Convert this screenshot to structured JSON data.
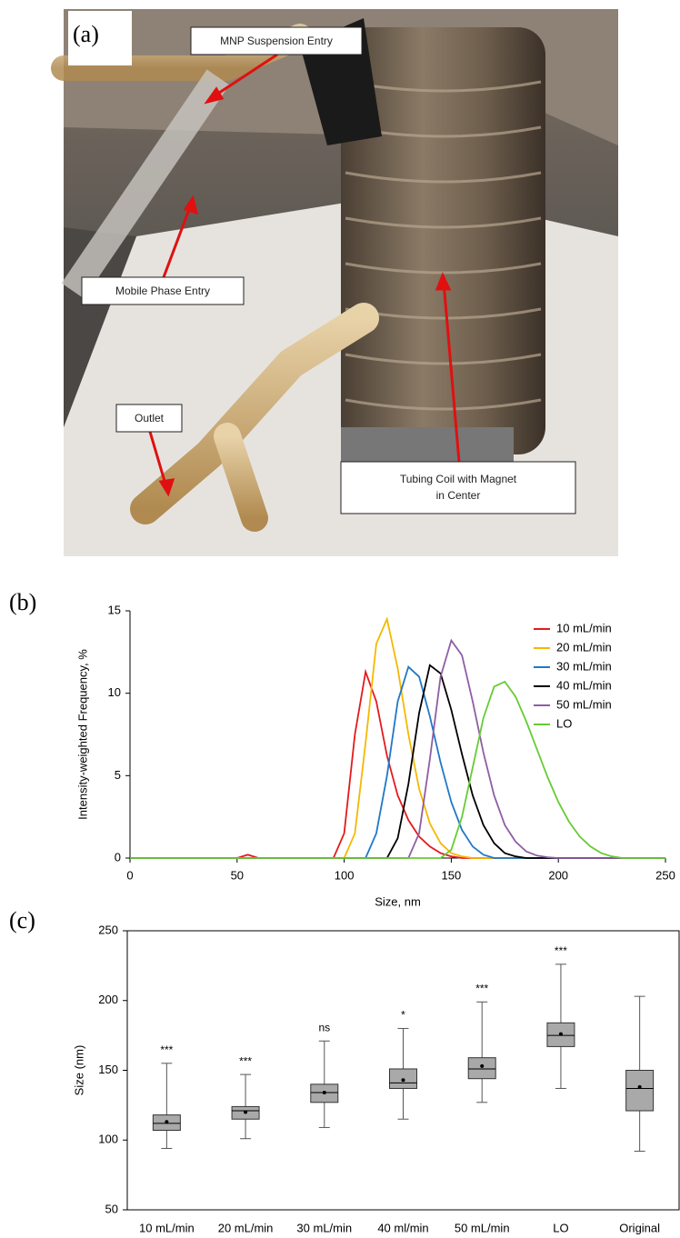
{
  "panel_a": {
    "panel_label": "(a)",
    "callouts": [
      "MNP Suspension Entry",
      "Mobile Phase Entry",
      "Outlet",
      "Tubing Coil with Magnet",
      "in Center"
    ]
  },
  "chart_data": [
    {
      "type": "line",
      "panel_label": "(b)",
      "x_label": "Size, nm",
      "y_label": "Intensity-weighted Frequency, %",
      "x": [
        0,
        50,
        55,
        60,
        90,
        95,
        100,
        105,
        110,
        115,
        120,
        125,
        130,
        135,
        140,
        145,
        150,
        155,
        160,
        165,
        170,
        175,
        180,
        185,
        190,
        195,
        200,
        205,
        210,
        215,
        220,
        225,
        230,
        250
      ],
      "xlim": [
        0,
        250
      ],
      "xticks": [
        0,
        50,
        100,
        150,
        200,
        250
      ],
      "ylim": [
        0,
        15
      ],
      "yticks": [
        0,
        5,
        10,
        15
      ],
      "legend": "upper right",
      "series": [
        {
          "name": "10 mL/min",
          "color": "#e41a1c",
          "values": [
            0,
            0,
            0.2,
            0,
            0,
            0,
            1.5,
            7.5,
            11.3,
            9.5,
            6.2,
            3.8,
            2.3,
            1.3,
            0.7,
            0.3,
            0.1,
            0,
            0,
            0,
            0,
            0,
            0,
            0,
            0,
            0,
            0,
            0,
            0,
            0,
            0,
            0,
            0,
            0
          ]
        },
        {
          "name": "20 mL/min",
          "color": "#f5b800",
          "values": [
            0,
            0,
            0,
            0,
            0,
            0,
            0,
            1.5,
            7,
            13,
            14.5,
            11.5,
            7.5,
            4.2,
            2.1,
            0.9,
            0.3,
            0.1,
            0,
            0,
            0,
            0,
            0,
            0,
            0,
            0,
            0,
            0,
            0,
            0,
            0,
            0,
            0,
            0
          ]
        },
        {
          "name": "30 mL/min",
          "color": "#1f78c8",
          "values": [
            0,
            0,
            0,
            0,
            0,
            0,
            0,
            0,
            0,
            1.5,
            5,
            9.5,
            11.6,
            11,
            8.6,
            5.8,
            3.4,
            1.7,
            0.7,
            0.2,
            0,
            0,
            0,
            0,
            0,
            0,
            0,
            0,
            0,
            0,
            0,
            0,
            0,
            0
          ]
        },
        {
          "name": "40 mL/min",
          "color": "#000000",
          "values": [
            0,
            0,
            0,
            0,
            0,
            0,
            0,
            0,
            0,
            0,
            0,
            1.2,
            4.5,
            8.8,
            11.7,
            11.2,
            9,
            6.3,
            3.8,
            2,
            0.9,
            0.3,
            0.1,
            0,
            0,
            0,
            0,
            0,
            0,
            0,
            0,
            0,
            0,
            0
          ]
        },
        {
          "name": "50 mL/min",
          "color": "#8e5ea2",
          "values": [
            0,
            0,
            0,
            0,
            0,
            0,
            0,
            0,
            0,
            0,
            0,
            0,
            0,
            1.5,
            6,
            11,
            13.2,
            12.3,
            9.5,
            6.4,
            3.8,
            2,
            1,
            0.4,
            0.15,
            0.05,
            0,
            0,
            0,
            0,
            0,
            0,
            0,
            0
          ]
        },
        {
          "name": "LO",
          "color": "#66cc33",
          "values": [
            0,
            0,
            0,
            0,
            0,
            0,
            0,
            0,
            0,
            0,
            0,
            0,
            0,
            0,
            0,
            0,
            0.5,
            2.5,
            5.5,
            8.5,
            10.4,
            10.7,
            9.8,
            8.3,
            6.6,
            4.9,
            3.4,
            2.2,
            1.3,
            0.7,
            0.3,
            0.1,
            0,
            0
          ]
        }
      ]
    },
    {
      "type": "box",
      "panel_label": "(c)",
      "y_label": "Size (nm)",
      "categories": [
        "10 mL/min",
        "20 mL/min",
        "30 mL/min",
        "40 ml/min",
        "50 mL/min",
        "LO",
        "Original"
      ],
      "ylim": [
        50,
        250
      ],
      "yticks": [
        50,
        100,
        150,
        200,
        250
      ],
      "color": "#a9a9a9",
      "min": [
        94,
        101,
        109,
        115,
        127,
        137,
        92
      ],
      "q1": [
        107,
        115,
        127,
        137,
        144,
        167,
        121
      ],
      "median": [
        112,
        121,
        134,
        141,
        151,
        175,
        137
      ],
      "q3": [
        118,
        124,
        140,
        151,
        159,
        184,
        150
      ],
      "max": [
        155,
        147,
        171,
        180,
        199,
        226,
        203
      ],
      "mean": [
        113,
        120,
        134,
        143,
        153,
        176,
        138
      ],
      "annotations": [
        "***",
        "***",
        "ns",
        "*",
        "***",
        "***",
        null
      ]
    }
  ]
}
